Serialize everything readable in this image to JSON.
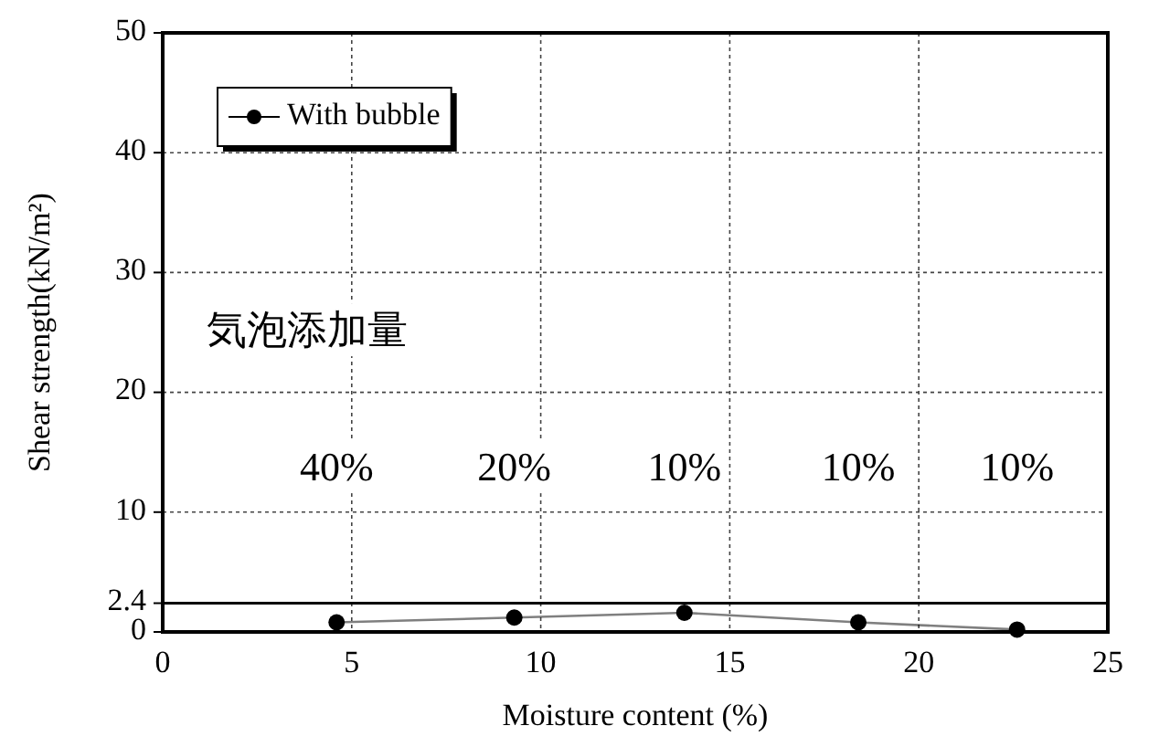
{
  "chart_data": {
    "type": "line",
    "xlabel": "Moisture content (%)",
    "ylabel": "Shear strength(kN/m²)",
    "series": [
      {
        "name": "With bubble",
        "color": "#000000",
        "x": [
          4.6,
          9.3,
          13.8,
          18.4,
          22.6
        ],
        "values": [
          0.8,
          1.2,
          1.6,
          0.8,
          0.2
        ]
      }
    ],
    "xlim": [
      0,
      25
    ],
    "xticks": [
      0,
      5,
      10,
      15,
      20,
      25
    ],
    "ylim": [
      0,
      50
    ],
    "yticks": [
      0,
      2.4,
      10,
      20,
      30,
      40,
      50
    ],
    "ref_lines": [
      {
        "axis": "y",
        "value": 2.4,
        "color": "#000000",
        "line_style": "solid"
      }
    ],
    "annotations": [
      "気泡添加量",
      "40%",
      "20%",
      "10%",
      "10%",
      "10%"
    ],
    "grid": true,
    "legend": "top left",
    "marker": "circle",
    "line_style": "solid"
  }
}
